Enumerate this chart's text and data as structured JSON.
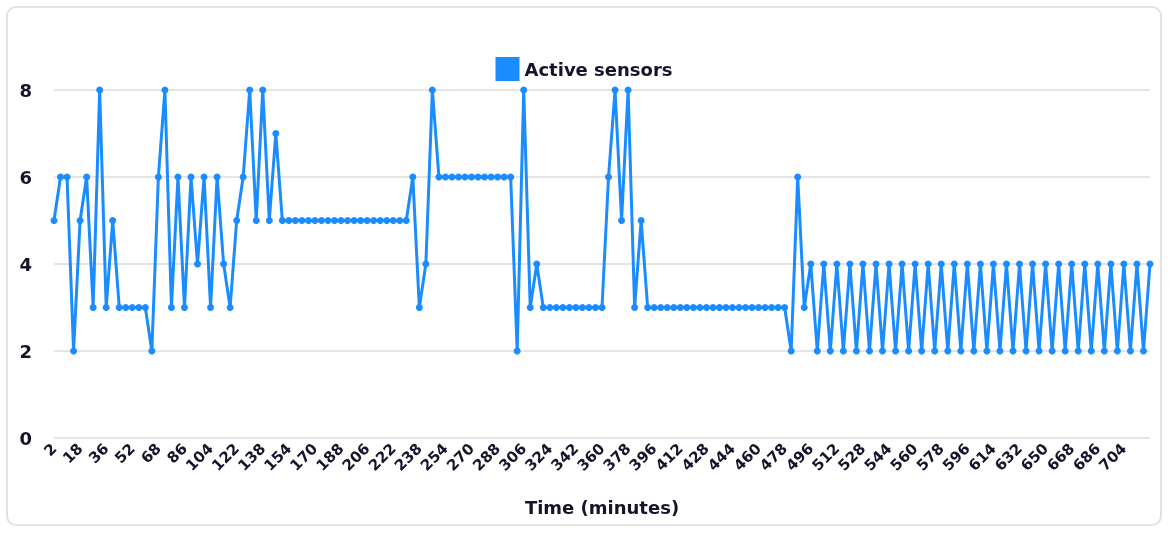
{
  "chart_data": {
    "type": "line",
    "xlabel": "Time (minutes)",
    "categories": [
      "2",
      null,
      null,
      null,
      "18",
      null,
      null,
      null,
      "36",
      null,
      null,
      null,
      "52",
      null,
      null,
      null,
      "68",
      null,
      null,
      null,
      "86",
      null,
      null,
      null,
      "104",
      null,
      null,
      null,
      "122",
      null,
      null,
      null,
      "138",
      null,
      null,
      null,
      "154",
      null,
      null,
      null,
      "170",
      null,
      null,
      null,
      "188",
      null,
      null,
      null,
      "206",
      null,
      null,
      null,
      "222",
      null,
      null,
      null,
      "238",
      null,
      null,
      null,
      "254",
      null,
      null,
      null,
      "270",
      null,
      null,
      null,
      "288",
      null,
      null,
      null,
      "306",
      null,
      null,
      null,
      "324",
      null,
      null,
      null,
      "342",
      null,
      null,
      null,
      "360",
      null,
      null,
      null,
      "378",
      null,
      null,
      null,
      "396",
      null,
      null,
      null,
      "412",
      null,
      null,
      null,
      "428",
      null,
      null,
      null,
      "444",
      null,
      null,
      null,
      "460",
      null,
      null,
      null,
      "478",
      null,
      null,
      null,
      "496",
      null,
      null,
      null,
      "512",
      null,
      null,
      null,
      "528",
      null,
      null,
      null,
      "544",
      null,
      null,
      null,
      "560",
      null,
      null,
      null,
      "578",
      null,
      null,
      null,
      "596",
      null,
      null,
      null,
      "614",
      null,
      null,
      null,
      "632",
      null,
      null,
      null,
      "650",
      null,
      null,
      null,
      "668",
      null,
      null,
      null,
      "686",
      null,
      null,
      null,
      "704",
      null,
      null,
      null,
      null
    ],
    "series": [
      {
        "name": "Active sensors",
        "color": "#1a8cff",
        "values": [
          5,
          6,
          6,
          2,
          5,
          6,
          3,
          8,
          3,
          5,
          3,
          3,
          3,
          3,
          3,
          2,
          6,
          8,
          3,
          6,
          3,
          6,
          4,
          6,
          3,
          6,
          4,
          3,
          5,
          6,
          8,
          5,
          8,
          5,
          7,
          5,
          5,
          5,
          5,
          5,
          5,
          5,
          5,
          5,
          5,
          5,
          5,
          5,
          5,
          5,
          5,
          5,
          5,
          5,
          5,
          6,
          3,
          4,
          8,
          6,
          6,
          6,
          6,
          6,
          6,
          6,
          6,
          6,
          6,
          6,
          6,
          2,
          8,
          3,
          4,
          3,
          3,
          3,
          3,
          3,
          3,
          3,
          3,
          3,
          3,
          6,
          8,
          5,
          8,
          3,
          5,
          3,
          3,
          3,
          3,
          3,
          3,
          3,
          3,
          3,
          3,
          3,
          3,
          3,
          3,
          3,
          3,
          3,
          3,
          3,
          3,
          3,
          3,
          2,
          6,
          3,
          4,
          2,
          4,
          2,
          4,
          2,
          4,
          2,
          4,
          2,
          4,
          2,
          4,
          2,
          4,
          2,
          4,
          2,
          4,
          2,
          4,
          2,
          4,
          2,
          4,
          2,
          4,
          2,
          4,
          2,
          4,
          2,
          4,
          2,
          4,
          2,
          4,
          2,
          4,
          2,
          4,
          2,
          4,
          2,
          4,
          2,
          4,
          2,
          4,
          2,
          4,
          2,
          4
        ]
      }
    ],
    "ylim": [
      0,
      8
    ],
    "yticks": [
      0,
      2,
      4,
      6,
      8
    ],
    "grid": "y",
    "legend": "top",
    "marker": "circle",
    "line_style": "solid"
  }
}
